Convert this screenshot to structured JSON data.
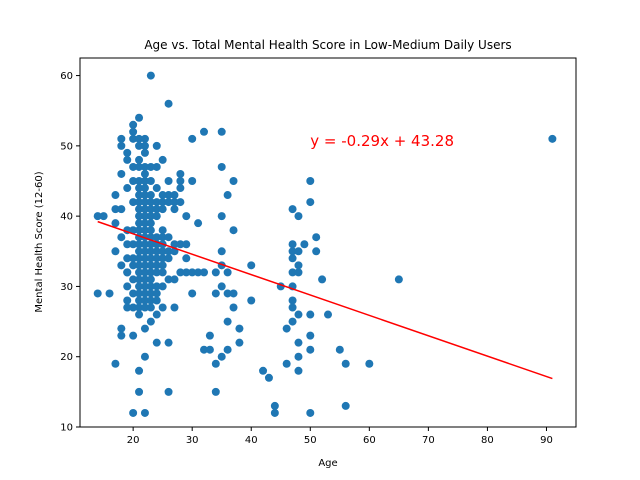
{
  "chart_data": {
    "type": "scatter",
    "title": "Age vs. Total Mental Health Score in Low-Medium Daily Users",
    "xlabel": "Age",
    "ylabel": "Mental Health Score (12-60)",
    "xlim": [
      11,
      95
    ],
    "ylim": [
      10,
      62.5
    ],
    "xticks": [
      20,
      30,
      40,
      50,
      60,
      70,
      80,
      90
    ],
    "yticks": [
      10,
      20,
      30,
      40,
      50,
      60
    ],
    "grid": false,
    "point_color": "#1f77b4",
    "line_color": "#ff0000",
    "annotation": {
      "text": "y = -0.29x + 43.28",
      "x": 50,
      "y": 50
    },
    "regression": {
      "slope": -0.29,
      "intercept": 43.28,
      "x_start": 14,
      "x_end": 91
    },
    "points": [
      [
        14,
        40
      ],
      [
        14,
        29
      ],
      [
        15,
        40
      ],
      [
        16,
        29
      ],
      [
        17,
        43
      ],
      [
        17,
        41
      ],
      [
        17,
        39
      ],
      [
        17,
        35
      ],
      [
        17,
        19
      ],
      [
        18,
        51
      ],
      [
        18,
        50
      ],
      [
        18,
        46
      ],
      [
        18,
        41
      ],
      [
        18,
        37
      ],
      [
        18,
        33
      ],
      [
        18,
        24
      ],
      [
        18,
        23
      ],
      [
        19,
        49
      ],
      [
        19,
        48
      ],
      [
        19,
        44
      ],
      [
        19,
        38
      ],
      [
        19,
        36
      ],
      [
        19,
        34
      ],
      [
        19,
        32
      ],
      [
        19,
        30
      ],
      [
        19,
        28
      ],
      [
        19,
        27
      ],
      [
        19,
        32
      ],
      [
        20,
        53
      ],
      [
        20,
        52
      ],
      [
        20,
        51
      ],
      [
        20,
        47
      ],
      [
        20,
        45
      ],
      [
        20,
        42
      ],
      [
        20,
        38
      ],
      [
        20,
        36
      ],
      [
        20,
        34
      ],
      [
        20,
        33
      ],
      [
        20,
        31
      ],
      [
        20,
        29
      ],
      [
        20,
        27
      ],
      [
        20,
        23
      ],
      [
        20,
        12
      ],
      [
        21,
        54
      ],
      [
        21,
        51
      ],
      [
        21,
        50
      ],
      [
        21,
        48
      ],
      [
        21,
        47
      ],
      [
        21,
        45
      ],
      [
        21,
        44
      ],
      [
        21,
        43
      ],
      [
        21,
        42
      ],
      [
        21,
        41
      ],
      [
        21,
        40
      ],
      [
        21,
        39
      ],
      [
        21,
        38
      ],
      [
        21,
        37
      ],
      [
        21,
        36
      ],
      [
        21,
        35
      ],
      [
        21,
        34
      ],
      [
        21,
        33
      ],
      [
        21,
        32
      ],
      [
        21,
        31
      ],
      [
        21,
        30
      ],
      [
        21,
        29
      ],
      [
        21,
        28
      ],
      [
        21,
        27
      ],
      [
        21,
        26
      ],
      [
        21,
        18
      ],
      [
        21,
        15
      ],
      [
        22,
        51
      ],
      [
        22,
        50
      ],
      [
        22,
        49
      ],
      [
        22,
        47
      ],
      [
        22,
        46
      ],
      [
        22,
        45
      ],
      [
        22,
        44
      ],
      [
        22,
        43
      ],
      [
        22,
        42
      ],
      [
        22,
        41
      ],
      [
        22,
        40
      ],
      [
        22,
        39
      ],
      [
        22,
        38
      ],
      [
        22,
        37
      ],
      [
        22,
        36
      ],
      [
        22,
        35
      ],
      [
        22,
        34
      ],
      [
        22,
        33
      ],
      [
        22,
        32
      ],
      [
        22,
        31
      ],
      [
        22,
        30
      ],
      [
        22,
        29
      ],
      [
        22,
        28
      ],
      [
        22,
        27
      ],
      [
        22,
        24
      ],
      [
        22,
        20
      ],
      [
        22,
        12
      ],
      [
        23,
        60
      ],
      [
        23,
        47
      ],
      [
        23,
        45
      ],
      [
        23,
        43
      ],
      [
        23,
        42
      ],
      [
        23,
        41
      ],
      [
        23,
        40
      ],
      [
        23,
        39
      ],
      [
        23,
        38
      ],
      [
        23,
        37
      ],
      [
        23,
        36
      ],
      [
        23,
        35
      ],
      [
        23,
        34
      ],
      [
        23,
        33
      ],
      [
        23,
        32
      ],
      [
        23,
        31
      ],
      [
        23,
        30
      ],
      [
        23,
        29
      ],
      [
        23,
        28
      ],
      [
        23,
        27
      ],
      [
        23,
        25
      ],
      [
        24,
        50
      ],
      [
        24,
        47
      ],
      [
        24,
        44
      ],
      [
        24,
        42
      ],
      [
        24,
        41
      ],
      [
        24,
        40
      ],
      [
        24,
        37
      ],
      [
        24,
        36
      ],
      [
        24,
        35
      ],
      [
        24,
        34
      ],
      [
        24,
        33
      ],
      [
        24,
        32
      ],
      [
        24,
        30
      ],
      [
        24,
        29
      ],
      [
        24,
        28
      ],
      [
        24,
        26
      ],
      [
        24,
        22
      ],
      [
        25,
        48
      ],
      [
        25,
        43
      ],
      [
        25,
        42
      ],
      [
        25,
        41
      ],
      [
        25,
        38
      ],
      [
        25,
        37
      ],
      [
        25,
        36
      ],
      [
        25,
        35
      ],
      [
        25,
        34
      ],
      [
        25,
        33
      ],
      [
        25,
        32
      ],
      [
        25,
        30
      ],
      [
        25,
        27
      ],
      [
        26,
        56
      ],
      [
        26,
        45
      ],
      [
        26,
        43
      ],
      [
        26,
        42
      ],
      [
        26,
        37
      ],
      [
        26,
        35
      ],
      [
        26,
        34
      ],
      [
        26,
        31
      ],
      [
        26,
        22
      ],
      [
        26,
        15
      ],
      [
        27,
        43
      ],
      [
        27,
        42
      ],
      [
        27,
        41
      ],
      [
        27,
        36
      ],
      [
        27,
        35
      ],
      [
        27,
        31
      ],
      [
        27,
        27
      ],
      [
        28,
        46
      ],
      [
        28,
        45
      ],
      [
        28,
        44
      ],
      [
        28,
        42
      ],
      [
        28,
        36
      ],
      [
        28,
        32
      ],
      [
        29,
        40
      ],
      [
        29,
        36
      ],
      [
        29,
        34
      ],
      [
        29,
        32
      ],
      [
        30,
        51
      ],
      [
        30,
        45
      ],
      [
        30,
        32
      ],
      [
        30,
        29
      ],
      [
        31,
        39
      ],
      [
        31,
        32
      ],
      [
        32,
        52
      ],
      [
        32,
        32
      ],
      [
        32,
        21
      ],
      [
        33,
        23
      ],
      [
        33,
        21
      ],
      [
        34,
        32
      ],
      [
        34,
        29
      ],
      [
        34,
        19
      ],
      [
        34,
        15
      ],
      [
        35,
        52
      ],
      [
        35,
        47
      ],
      [
        35,
        40
      ],
      [
        35,
        35
      ],
      [
        35,
        33
      ],
      [
        35,
        30
      ],
      [
        35,
        20
      ],
      [
        36,
        43
      ],
      [
        36,
        32
      ],
      [
        36,
        29
      ],
      [
        36,
        25
      ],
      [
        36,
        21
      ],
      [
        37,
        45
      ],
      [
        37,
        38
      ],
      [
        37,
        29
      ],
      [
        37,
        27
      ],
      [
        38,
        24
      ],
      [
        38,
        22
      ],
      [
        40,
        33
      ],
      [
        40,
        28
      ],
      [
        42,
        18
      ],
      [
        43,
        17
      ],
      [
        44,
        13
      ],
      [
        44,
        12
      ],
      [
        45,
        30
      ],
      [
        46,
        24
      ],
      [
        46,
        19
      ],
      [
        47,
        41
      ],
      [
        47,
        36
      ],
      [
        47,
        35
      ],
      [
        47,
        34
      ],
      [
        47,
        32
      ],
      [
        47,
        30
      ],
      [
        47,
        28
      ],
      [
        47,
        27
      ],
      [
        47,
        25
      ],
      [
        48,
        40
      ],
      [
        48,
        35
      ],
      [
        48,
        33
      ],
      [
        48,
        32
      ],
      [
        48,
        26
      ],
      [
        48,
        22
      ],
      [
        48,
        20
      ],
      [
        48,
        18
      ],
      [
        49,
        36
      ],
      [
        50,
        45
      ],
      [
        50,
        42
      ],
      [
        50,
        26
      ],
      [
        50,
        23
      ],
      [
        50,
        21
      ],
      [
        50,
        12
      ],
      [
        51,
        37
      ],
      [
        51,
        35
      ],
      [
        52,
        31
      ],
      [
        53,
        26
      ],
      [
        55,
        21
      ],
      [
        56,
        19
      ],
      [
        56,
        13
      ],
      [
        60,
        19
      ],
      [
        65,
        31
      ],
      [
        91,
        51
      ]
    ]
  }
}
